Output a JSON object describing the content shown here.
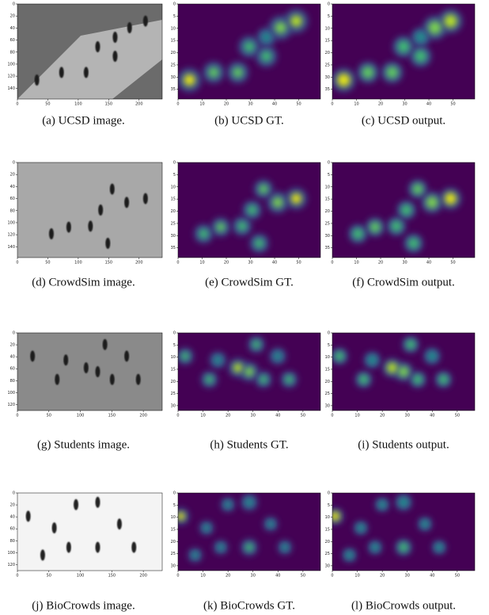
{
  "panels": [
    {
      "caption": "(a) UCSD image.",
      "xlim": [
        0,
        238
      ],
      "ylim": [
        158,
        0
      ],
      "xticks": [
        0,
        50,
        100,
        150,
        200
      ],
      "yticks": [
        0,
        20,
        40,
        60,
        80,
        100,
        120,
        140
      ]
    },
    {
      "caption": "(b) UCSD GT.",
      "xlim": [
        0,
        59
      ],
      "ylim": [
        39,
        0
      ],
      "xticks": [
        0,
        10,
        20,
        30,
        40,
        50
      ],
      "yticks": [
        0,
        5,
        10,
        15,
        20,
        25,
        30,
        35
      ]
    },
    {
      "caption": "(c) UCSD output.",
      "xlim": [
        0,
        59
      ],
      "ylim": [
        39,
        0
      ],
      "xticks": [
        0,
        10,
        20,
        30,
        40,
        50
      ],
      "yticks": [
        0,
        5,
        10,
        15,
        20,
        25,
        30,
        35
      ]
    },
    {
      "caption": "(d) CrowdSim image.",
      "xlim": [
        0,
        238
      ],
      "ylim": [
        158,
        0
      ],
      "xticks": [
        0,
        50,
        100,
        150,
        200
      ],
      "yticks": [
        0,
        20,
        40,
        60,
        80,
        100,
        120,
        140
      ]
    },
    {
      "caption": "(e) CrowdSim GT.",
      "xlim": [
        0,
        59
      ],
      "ylim": [
        39,
        0
      ],
      "xticks": [
        0,
        10,
        20,
        30,
        40,
        50
      ],
      "yticks": [
        0,
        5,
        10,
        15,
        20,
        25,
        30,
        35
      ]
    },
    {
      "caption": "(f) CrowdSim output.",
      "xlim": [
        0,
        59
      ],
      "ylim": [
        39,
        0
      ],
      "xticks": [
        0,
        10,
        20,
        30,
        40,
        50
      ],
      "yticks": [
        0,
        5,
        10,
        15,
        20,
        25,
        30,
        35
      ]
    },
    {
      "caption": "(g) Students image.",
      "xlim": [
        0,
        230
      ],
      "ylim": [
        130,
        0
      ],
      "xticks": [
        0,
        50,
        100,
        150,
        200
      ],
      "yticks": [
        0,
        20,
        40,
        60,
        80,
        100,
        120
      ]
    },
    {
      "caption": "(h) Students GT.",
      "xlim": [
        0,
        57
      ],
      "ylim": [
        32,
        0
      ],
      "xticks": [
        0,
        10,
        20,
        30,
        40,
        50
      ],
      "yticks": [
        0,
        5,
        10,
        15,
        20,
        25,
        30
      ]
    },
    {
      "caption": "(i) Students output.",
      "xlim": [
        0,
        57
      ],
      "ylim": [
        32,
        0
      ],
      "xticks": [
        0,
        10,
        20,
        30,
        40,
        50
      ],
      "yticks": [
        0,
        5,
        10,
        15,
        20,
        25,
        30
      ]
    },
    {
      "caption": "(j) BioCrowds image.",
      "xlim": [
        0,
        230
      ],
      "ylim": [
        130,
        0
      ],
      "xticks": [
        0,
        50,
        100,
        150,
        200
      ],
      "yticks": [
        0,
        20,
        40,
        60,
        80,
        100,
        120
      ]
    },
    {
      "caption": "(k) BioCrowds GT.",
      "xlim": [
        0,
        57
      ],
      "ylim": [
        32,
        0
      ],
      "xticks": [
        0,
        10,
        20,
        30,
        40,
        50
      ],
      "yticks": [
        0,
        5,
        10,
        15,
        20,
        25,
        30
      ]
    },
    {
      "caption": "(l) BioCrowds output.",
      "xlim": [
        0,
        57
      ],
      "ylim": [
        32,
        0
      ],
      "xticks": [
        0,
        10,
        20,
        30,
        40,
        50
      ],
      "yticks": [
        0,
        5,
        10,
        15,
        20,
        25,
        30
      ]
    }
  ]
}
